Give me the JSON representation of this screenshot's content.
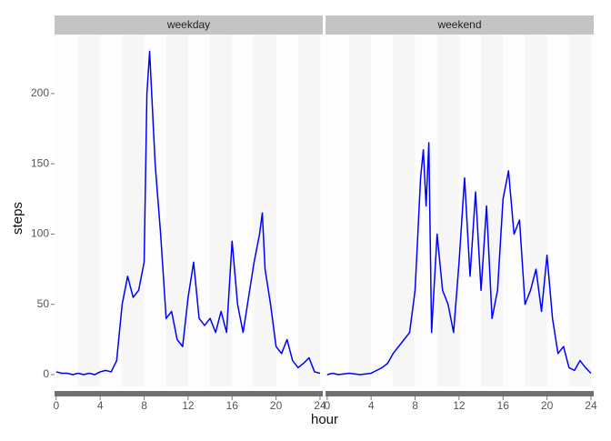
{
  "axis_labels": {
    "x": "hour",
    "y": "steps"
  },
  "chart_data": [
    {
      "type": "line",
      "title": "weekday",
      "color": "#0000ff",
      "x": [
        0,
        0.5,
        1,
        1.5,
        2,
        2.5,
        3,
        3.5,
        4,
        4.5,
        5,
        5.5,
        6,
        6.5,
        7,
        7.5,
        8,
        8.25,
        8.5,
        8.75,
        9,
        9.5,
        10,
        10.5,
        11,
        11.5,
        12,
        12.5,
        13,
        13.5,
        14,
        14.5,
        15,
        15.5,
        16,
        16.5,
        17,
        17.5,
        18,
        18.5,
        18.75,
        19,
        19.5,
        20,
        20.5,
        21,
        21.5,
        22,
        22.5,
        23,
        23.5,
        24
      ],
      "values": [
        2,
        1,
        1,
        0,
        1,
        0,
        1,
        0,
        2,
        3,
        2,
        10,
        50,
        70,
        55,
        60,
        80,
        200,
        230,
        190,
        150,
        100,
        40,
        45,
        25,
        20,
        55,
        80,
        40,
        35,
        40,
        30,
        45,
        30,
        95,
        50,
        30,
        55,
        80,
        100,
        115,
        75,
        50,
        20,
        15,
        25,
        10,
        5,
        8,
        12,
        2,
        1
      ],
      "xlim": [
        -0.15,
        24.25
      ],
      "xticks": [
        0,
        4,
        8,
        12,
        16,
        20,
        24
      ],
      "ylim": [
        -8.4,
        242
      ],
      "yticks": [
        0,
        50,
        100,
        150,
        200
      ]
    },
    {
      "type": "line",
      "title": "weekend",
      "color": "#0000ff",
      "x": [
        0,
        0.5,
        1,
        2,
        3,
        4,
        4.5,
        5,
        5.5,
        6,
        6.5,
        7,
        7.5,
        8,
        8.5,
        8.75,
        9,
        9.25,
        9.5,
        10,
        10.5,
        11,
        11.5,
        12,
        12.5,
        13,
        13.5,
        14,
        14.5,
        15,
        15.5,
        16,
        16.5,
        17,
        17.5,
        18,
        18.5,
        19,
        19.5,
        20,
        20.5,
        21,
        21.5,
        22,
        22.5,
        23,
        23.5,
        24
      ],
      "values": [
        0,
        1,
        0,
        1,
        0,
        1,
        3,
        5,
        8,
        15,
        20,
        25,
        30,
        60,
        140,
        160,
        120,
        165,
        30,
        100,
        60,
        50,
        30,
        80,
        140,
        70,
        130,
        60,
        120,
        40,
        60,
        125,
        145,
        100,
        110,
        50,
        60,
        75,
        45,
        85,
        40,
        15,
        20,
        5,
        3,
        10,
        5,
        1
      ],
      "xlim": [
        -0.15,
        24.25
      ],
      "xticks": [
        0,
        4,
        8,
        12,
        16,
        20,
        24
      ],
      "ylim": [
        -8.4,
        242
      ]
    }
  ]
}
